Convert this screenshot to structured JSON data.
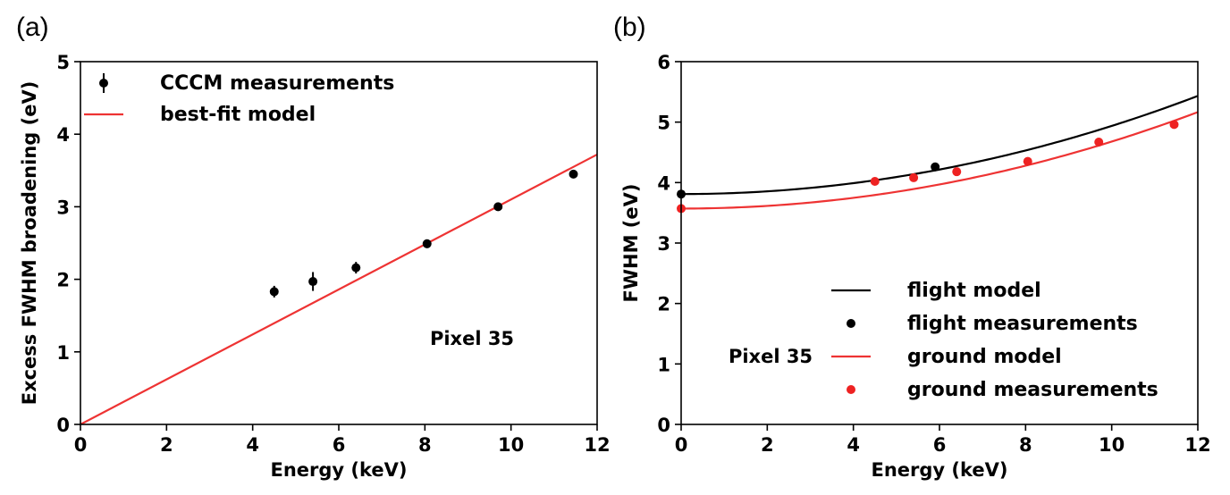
{
  "chart_data": [
    {
      "panel_label": "(a)",
      "type": "scatter",
      "xlabel": "Energy (keV)",
      "ylabel": "Excess FWHM broadening (eV)",
      "xlim": [
        0,
        12
      ],
      "ylim": [
        0,
        5
      ],
      "xticks": [
        "0",
        "2",
        "4",
        "6",
        "8",
        "10",
        "12"
      ],
      "yticks": [
        "0",
        "1",
        "2",
        "3",
        "4",
        "5"
      ],
      "annotation": "Pixel 35",
      "legend_position": "top-left",
      "series": [
        {
          "name": "CCCM measurements",
          "kind": "errorbar",
          "color": "#000000",
          "points": [
            {
              "x": 4.5,
              "y": 1.83,
              "err": 0.08
            },
            {
              "x": 5.4,
              "y": 1.97,
              "err": 0.13
            },
            {
              "x": 6.4,
              "y": 2.16,
              "err": 0.08
            },
            {
              "x": 8.05,
              "y": 2.49,
              "err": 0.06
            },
            {
              "x": 9.7,
              "y": 3.0,
              "err": 0.04
            },
            {
              "x": 11.45,
              "y": 3.45,
              "err": 0.04
            }
          ]
        },
        {
          "name": "best-fit model",
          "kind": "line",
          "color": "#ee3333",
          "points": [
            {
              "x": 0,
              "y": 0
            },
            {
              "x": 12,
              "y": 3.72
            }
          ]
        }
      ]
    },
    {
      "panel_label": "(b)",
      "type": "scatter",
      "xlabel": "Energy (keV)",
      "ylabel": "FWHM (eV)",
      "xlim": [
        0,
        12
      ],
      "ylim": [
        0,
        6
      ],
      "xticks": [
        "0",
        "2",
        "4",
        "6",
        "8",
        "10",
        "12"
      ],
      "yticks": [
        "0",
        "1",
        "2",
        "3",
        "4",
        "5",
        "6"
      ],
      "annotation": "Pixel 35",
      "legend_position": "lower-right",
      "series": [
        {
          "name": "flight model",
          "kind": "line",
          "color": "#000000",
          "model": {
            "y0": 3.81,
            "k": 0.01127
          }
        },
        {
          "name": "flight measurements",
          "kind": "points",
          "color": "#000000",
          "points": [
            {
              "x": 0,
              "y": 3.81
            },
            {
              "x": 5.9,
              "y": 4.26
            }
          ]
        },
        {
          "name": "ground model",
          "kind": "line",
          "color": "#ee3333",
          "model": {
            "y0": 3.57,
            "k": 0.01108
          }
        },
        {
          "name": "ground measurements",
          "kind": "points",
          "color": "#ee2222",
          "points": [
            {
              "x": 0,
              "y": 3.57
            },
            {
              "x": 4.5,
              "y": 4.02
            },
            {
              "x": 5.4,
              "y": 4.08
            },
            {
              "x": 6.4,
              "y": 4.18
            },
            {
              "x": 8.05,
              "y": 4.35
            },
            {
              "x": 9.7,
              "y": 4.67
            },
            {
              "x": 11.45,
              "y": 4.96
            }
          ]
        }
      ]
    }
  ]
}
